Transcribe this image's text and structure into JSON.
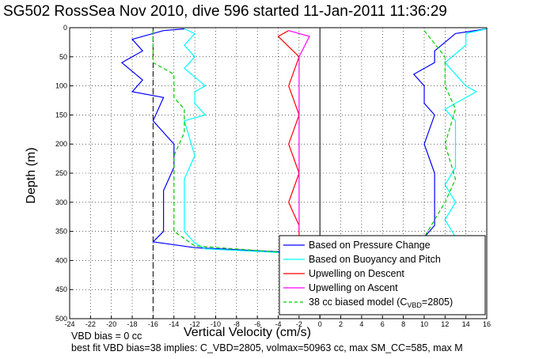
{
  "chart_data": {
    "type": "line",
    "title": "SG502 RossSea Nov 2010, dive 596 started 11-Jan-2011 11:36:29",
    "xlabel": "Vertical Velocity (cm/s)",
    "ylabel": "Depth (m)",
    "xlim": [
      -24,
      16
    ],
    "ylim": [
      0,
      500
    ],
    "y_reversed": true,
    "grid": true,
    "xticks": [
      -24,
      -22,
      -20,
      -18,
      -16,
      -14,
      -12,
      -10,
      -8,
      -6,
      -4,
      -2,
      0,
      2,
      4,
      6,
      8,
      10,
      12,
      14,
      16
    ],
    "yticks": [
      0,
      50,
      100,
      150,
      200,
      250,
      300,
      350,
      400,
      450,
      500
    ],
    "legend_position": "bottom-right",
    "legend": [
      {
        "label": "Based on Pressure Change",
        "color": "#0000ff",
        "dash": false
      },
      {
        "label": "Based on Buoyancy and Pitch",
        "color": "#00ffff",
        "dash": false
      },
      {
        "label": "Upwelling on Descent",
        "color": "#ff0000",
        "dash": false
      },
      {
        "label": "Upwelling on Ascent",
        "color": "#ff00ff",
        "dash": false
      },
      {
        "label": "38 cc biased model (C",
        "sub": "VBD",
        "tail": "=2805)",
        "color": "#00cc00",
        "dash": true
      }
    ],
    "series": [
      {
        "color": "#0000ff",
        "points": [
          [
            -13,
            2
          ],
          [
            -15,
            5
          ],
          [
            -18,
            20
          ],
          [
            -17,
            40
          ],
          [
            -19,
            60
          ],
          [
            -17,
            90
          ],
          [
            -18,
            110
          ],
          [
            -15,
            120
          ],
          [
            -16,
            160
          ],
          [
            -14,
            200
          ],
          [
            -14,
            240
          ],
          [
            -15,
            280
          ],
          [
            -15,
            320
          ],
          [
            -15,
            350
          ],
          [
            -16,
            368
          ],
          [
            -12,
            378
          ],
          [
            -4,
            385
          ],
          [
            -1,
            388
          ]
        ]
      },
      {
        "color": "#00ffff",
        "points": [
          [
            -13,
            2
          ],
          [
            -12,
            10
          ],
          [
            -13,
            30
          ],
          [
            -12,
            50
          ],
          [
            -13,
            70
          ],
          [
            -11,
            100
          ],
          [
            -12,
            110
          ],
          [
            -12,
            130
          ],
          [
            -11,
            150
          ],
          [
            -13,
            160
          ],
          [
            -12,
            220
          ],
          [
            -13,
            260
          ],
          [
            -13,
            300
          ],
          [
            -13,
            350
          ],
          [
            -12,
            370
          ],
          [
            -11,
            380
          ],
          [
            -2,
            388
          ]
        ]
      },
      {
        "color": "#ff0000",
        "points": [
          [
            -3,
            5
          ],
          [
            -4,
            15
          ],
          [
            -2,
            50
          ],
          [
            -3,
            100
          ],
          [
            -2,
            150
          ],
          [
            -3,
            200
          ],
          [
            -2,
            250
          ],
          [
            -3,
            300
          ],
          [
            -2,
            340
          ],
          [
            -2,
            360
          ]
        ]
      },
      {
        "color": "#ff00ff",
        "points": [
          [
            -3,
            5
          ],
          [
            -1,
            15
          ],
          [
            -2,
            50
          ],
          [
            -2,
            100
          ],
          [
            -2,
            150
          ],
          [
            -2,
            200
          ],
          [
            -2,
            250
          ],
          [
            -2,
            300
          ],
          [
            -2,
            350
          ]
        ]
      },
      {
        "color": "#00cc00",
        "dash": true,
        "points": [
          [
            -16,
            5
          ],
          [
            -16,
            20
          ],
          [
            -16,
            60
          ],
          [
            -14,
            80
          ],
          [
            -14,
            120
          ],
          [
            -13,
            140
          ],
          [
            -13,
            180
          ],
          [
            -14,
            220
          ],
          [
            -14,
            260
          ],
          [
            -14,
            300
          ],
          [
            -14,
            350
          ],
          [
            -12,
            375
          ],
          [
            -2,
            388
          ]
        ]
      },
      {
        "color": "#0000ff",
        "points": [
          [
            16,
            2
          ],
          [
            13,
            10
          ],
          [
            11,
            40
          ],
          [
            11,
            60
          ],
          [
            9,
            80
          ],
          [
            10,
            100
          ],
          [
            10,
            130
          ],
          [
            11,
            150
          ],
          [
            10,
            200
          ],
          [
            11,
            250
          ],
          [
            11,
            300
          ],
          [
            11,
            340
          ],
          [
            10,
            360
          ]
        ]
      },
      {
        "color": "#00ffff",
        "points": [
          [
            16,
            2
          ],
          [
            14,
            10
          ],
          [
            14,
            30
          ],
          [
            12,
            60
          ],
          [
            14,
            100
          ],
          [
            15,
            110
          ],
          [
            12,
            140
          ],
          [
            13,
            160
          ],
          [
            13,
            200
          ],
          [
            13,
            240
          ],
          [
            12,
            270
          ],
          [
            13,
            300
          ],
          [
            12,
            330
          ],
          [
            13,
            360
          ]
        ]
      },
      {
        "color": "#00cc00",
        "dash": true,
        "points": [
          [
            10,
            5
          ],
          [
            12,
            50
          ],
          [
            12,
            100
          ],
          [
            13,
            140
          ],
          [
            12,
            200
          ],
          [
            13,
            260
          ],
          [
            12,
            300
          ],
          [
            10,
            360
          ]
        ]
      }
    ]
  },
  "footer": {
    "line1": "VBD bias = 0 cc",
    "line2": "best fit VBD bias=38 implies: C_VBD=2805, volmax=50963 cc, max SM_CC=585, max M"
  }
}
